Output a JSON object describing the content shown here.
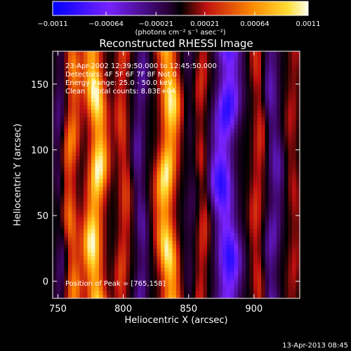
{
  "chart_data": {
    "type": "heatmap",
    "title": "Reconstructed RHESSI Image",
    "xlabel": "Heliocentric X (arcsec)",
    "ylabel": "Heliocentric Y (arcsec)",
    "xlim": [
      746,
      935
    ],
    "ylim": [
      -13,
      175
    ],
    "x_ticks": [
      750,
      800,
      850,
      900
    ],
    "y_ticks": [
      0,
      50,
      100,
      150
    ],
    "colorbar": {
      "unit_label": "(photons cm⁻² s⁻¹ asec⁻²)",
      "range": [
        -0.0011,
        0.0011
      ],
      "ticks": [
        {
          "value": -0.0011,
          "label": "−0.0011"
        },
        {
          "value": -0.00064,
          "label": "−0.00064"
        },
        {
          "value": -0.00021,
          "label": "−0.00021"
        },
        {
          "value": 0.00021,
          "label": "0.00021"
        },
        {
          "value": 0.00064,
          "label": "0.00064"
        },
        {
          "value": 0.0011,
          "label": "0.0011"
        }
      ]
    },
    "annotations": [
      "23-Apr-2002 12:39:50.000 to 12:45:50.000",
      "Detectors: 4F 5F 6F 7F 8F Not 0",
      "Energy Range: 25.0 - 50.0 keV",
      "Clean    Total counts: 8.83E+04",
      "Position of Peak = [765,158]"
    ],
    "peak": {
      "x": 765,
      "y": 158
    },
    "ridges": [
      {
        "x": 752,
        "amplitude": -0.25,
        "width": 5,
        "wobble": 2.0
      },
      {
        "x": 760,
        "amplitude": 0.55,
        "width": 6,
        "wobble": 2.5
      },
      {
        "x": 779,
        "amplitude": 1.0,
        "width": 7,
        "wobble": 3.0
      },
      {
        "x": 800,
        "amplitude": 0.35,
        "width": 5,
        "wobble": 2.0
      },
      {
        "x": 813,
        "amplitude": -0.35,
        "width": 5,
        "wobble": 2.0
      },
      {
        "x": 834,
        "amplitude": 0.95,
        "width": 7,
        "wobble": 3.0
      },
      {
        "x": 852,
        "amplitude": -0.15,
        "width": 6,
        "wobble": 2.0
      },
      {
        "x": 860,
        "amplitude": 0.3,
        "width": 5,
        "wobble": 2.0
      },
      {
        "x": 878,
        "amplitude": -0.85,
        "width": 9,
        "wobble": 3.5
      },
      {
        "x": 903,
        "amplitude": 0.3,
        "width": 5,
        "wobble": 2.0
      },
      {
        "x": 915,
        "amplitude": -0.4,
        "width": 6,
        "wobble": 2.5
      },
      {
        "x": 930,
        "amplitude": 0.2,
        "width": 5,
        "wobble": 2.0
      }
    ]
  },
  "footer": {
    "timestamp": "13-Apr-2013 08:45"
  },
  "colors": {
    "background": "#000000",
    "foreground": "#ffffff"
  }
}
